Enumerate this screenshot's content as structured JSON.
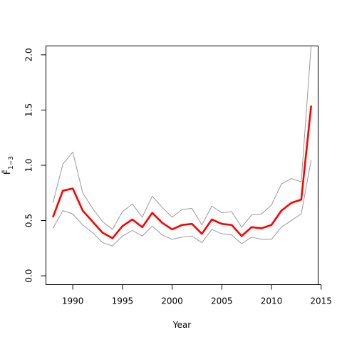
{
  "chart_data": {
    "type": "line",
    "xlabel": "Year",
    "ylabel": "F̄",
    "ylabel_sub": "1−3",
    "xlim": [
      1987.3,
      2014.7
    ],
    "ylim": [
      -0.08,
      2.08
    ],
    "x_ticks": [
      1990,
      1995,
      2000,
      2005,
      2010,
      2015
    ],
    "y_ticks": [
      0.0,
      0.5,
      1.0,
      1.5,
      2.0
    ],
    "y_tick_labels": [
      "0.0",
      "0.5",
      "1.0",
      "1.5",
      "2.0"
    ],
    "grid": false,
    "legend": "none",
    "x": [
      1988,
      1989,
      1990,
      1991,
      1992,
      1993,
      1994,
      1995,
      1996,
      1997,
      1998,
      1999,
      2000,
      2001,
      2002,
      2003,
      2004,
      2005,
      2006,
      2007,
      2008,
      2009,
      2010,
      2011,
      2012,
      2013,
      2014
    ],
    "series": [
      {
        "role": "estimate",
        "color": "#ff0000",
        "values": [
          0.53,
          0.77,
          0.79,
          0.59,
          0.49,
          0.39,
          0.34,
          0.45,
          0.51,
          0.44,
          0.57,
          0.48,
          0.42,
          0.46,
          0.47,
          0.38,
          0.51,
          0.47,
          0.46,
          0.36,
          0.44,
          0.43,
          0.46,
          0.59,
          0.66,
          0.69,
          1.54
        ]
      },
      {
        "role": "upper",
        "color": "#999999",
        "values": [
          0.66,
          1.01,
          1.12,
          0.75,
          0.61,
          0.49,
          0.42,
          0.58,
          0.65,
          0.53,
          0.72,
          0.62,
          0.53,
          0.6,
          0.61,
          0.46,
          0.63,
          0.57,
          0.58,
          0.44,
          0.55,
          0.56,
          0.64,
          0.83,
          0.88,
          0.85,
          2.09
        ]
      },
      {
        "role": "lower",
        "color": "#999999",
        "values": [
          0.43,
          0.59,
          0.56,
          0.46,
          0.39,
          0.3,
          0.27,
          0.36,
          0.41,
          0.36,
          0.45,
          0.37,
          0.33,
          0.35,
          0.36,
          0.3,
          0.42,
          0.38,
          0.37,
          0.29,
          0.35,
          0.33,
          0.33,
          0.44,
          0.5,
          0.56,
          1.05
        ]
      }
    ]
  }
}
